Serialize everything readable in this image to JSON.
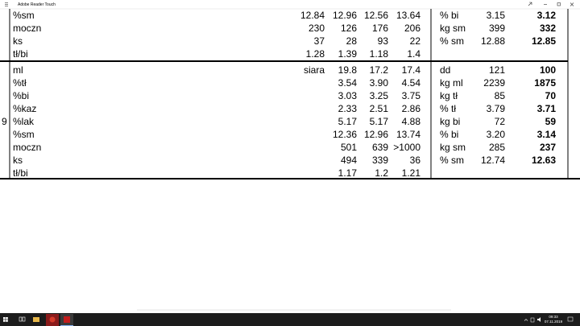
{
  "window": {
    "title": "Adobe Reader Touch"
  },
  "document": {
    "blocks": [
      {
        "side_label": null,
        "rows": [
          {
            "label": "%sm",
            "cells": [
              null,
              "12.84",
              "12.96",
              "12.56",
              "13.64"
            ],
            "right": [
              "% bi",
              "3.15",
              "3.12"
            ]
          },
          {
            "label": "moczn",
            "cells": [
              null,
              "230",
              "126",
              "176",
              "206"
            ],
            "right": [
              "kg sm",
              "399",
              "332"
            ]
          },
          {
            "label": "ks",
            "cells": [
              null,
              "37",
              "28",
              "93",
              "22"
            ],
            "right": [
              "% sm",
              "12.88",
              "12.85"
            ]
          },
          {
            "label": "tł/bi",
            "cells": [
              null,
              "1.28",
              "1.39",
              "1.18",
              "1.4"
            ],
            "right": null
          }
        ]
      },
      {
        "side_label": "9",
        "rows": [
          {
            "label": "ml",
            "cells": [
              "siara",
              "19.8",
              "17.2",
              "17.4",
              null
            ],
            "right": [
              "dd",
              "121",
              "100"
            ]
          },
          {
            "label": "%tł",
            "cells": [
              null,
              "3.54",
              "3.90",
              "4.54",
              null
            ],
            "right": [
              "kg ml",
              "2239",
              "1875"
            ]
          },
          {
            "label": "%bi",
            "cells": [
              null,
              "3.03",
              "3.25",
              "3.75",
              null
            ],
            "right": [
              "kg tł",
              "85",
              "70"
            ]
          },
          {
            "label": "%kaz",
            "cells": [
              null,
              "2.33",
              "2.51",
              "2.86",
              null
            ],
            "right": [
              "% tł",
              "3.79",
              "3.71"
            ]
          },
          {
            "label": "%lak",
            "cells": [
              null,
              "5.17",
              "5.17",
              "4.88",
              null
            ],
            "right": [
              "kg bi",
              "72",
              "59"
            ]
          },
          {
            "label": "%sm",
            "cells": [
              null,
              "12.36",
              "12.96",
              "13.74",
              null
            ],
            "right": [
              "% bi",
              "3.20",
              "3.14"
            ]
          },
          {
            "label": "moczn",
            "cells": [
              null,
              "501",
              "639",
              ">1000",
              null
            ],
            "right": [
              "kg sm",
              "285",
              "237"
            ]
          },
          {
            "label": "ks",
            "cells": [
              null,
              "494",
              "339",
              "36",
              null
            ],
            "right": [
              "% sm",
              "12.74",
              "12.63"
            ]
          },
          {
            "label": "tł/bi",
            "cells": [
              null,
              "1.17",
              "1.2",
              "1.21",
              null
            ],
            "right": null
          }
        ]
      }
    ]
  },
  "taskbar": {
    "time": "09:33",
    "date": "07.11.2019"
  }
}
